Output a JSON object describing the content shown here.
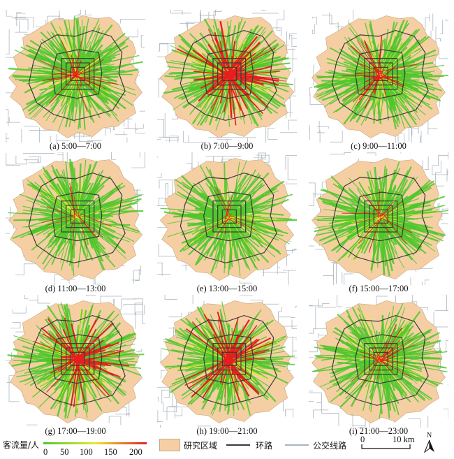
{
  "panels": [
    {
      "caption": "(a) 5:00—7:00",
      "level": 0.35
    },
    {
      "caption": "(b) 7:00—9:00",
      "level": 1.0
    },
    {
      "caption": "(c) 9:00—11:00",
      "level": 0.45
    },
    {
      "caption": "(d) 11:00—13:00",
      "level": 0.15
    },
    {
      "caption": "(e) 13:00—15:00",
      "level": 0.12
    },
    {
      "caption": "(f) 15:00—17:00",
      "level": 0.2
    },
    {
      "caption": "(g) 17:00—19:00",
      "level": 0.8
    },
    {
      "caption": "(h) 19:00—21:00",
      "level": 0.85
    },
    {
      "caption": "(i) 21:00—23:00",
      "level": 0.3
    }
  ],
  "legend": {
    "flow_title": "客流量/人",
    "flow_ticks": [
      "0",
      "50",
      "100",
      "150",
      "200"
    ],
    "flow_colors": [
      "#4fc72a",
      "#e8e82a",
      "#e61e1e"
    ],
    "study_area": "研究区域",
    "study_area_color": "#f5cfa3",
    "ring_road": "环路",
    "ring_road_color": "#3a3a3a",
    "bus_line": "公交线路",
    "bus_line_color": "#aab4bc",
    "scale_zero": "0",
    "scale_label": "10 km",
    "north": "N"
  }
}
